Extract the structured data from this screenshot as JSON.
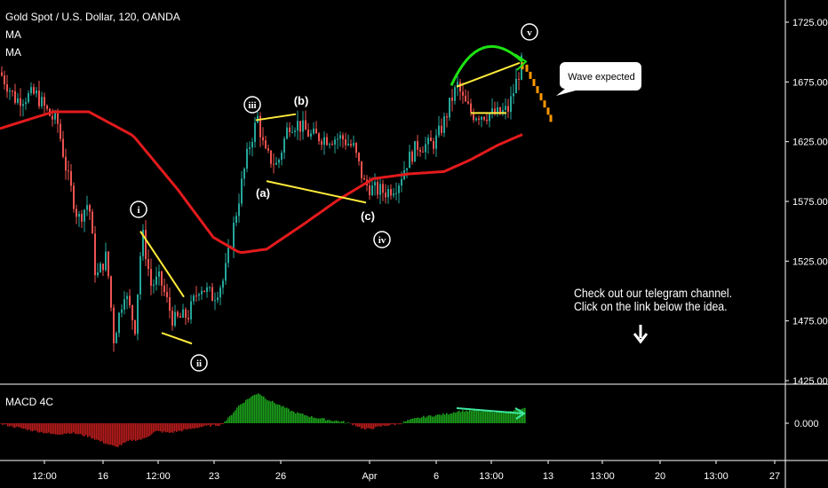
{
  "header": {
    "symbol_line": "Gold Spot / U.S. Dollar, 120, OANDA",
    "indicator_1": "MA",
    "indicator_2": "MA"
  },
  "macd_pane": {
    "label": "MACD 4C"
  },
  "annotations": {
    "note_line_1": "Check out our telegram channel.",
    "note_line_2": "Click on the link below the idea.",
    "callout": "Wave expected",
    "down_arrow": "down-arrow-icon"
  },
  "colors": {
    "up_candle": "#26a69a",
    "down_candle": "#ef5350",
    "ma": "#e31a1c",
    "trendline": "#ffeb3b",
    "arc": "#1de212",
    "projection": "#ff9800",
    "macd_up": "#1b9e1b",
    "macd_down": "#b71c1c",
    "divergence": "#3ee8a0",
    "background": "#000000"
  },
  "chart_data": {
    "type": "candlestick",
    "price_axis": {
      "ticks": [
        "1725.000",
        "1675.000",
        "1625.000",
        "1575.000",
        "1525.000",
        "1475.000",
        "1425.000"
      ],
      "range": [
        1425,
        1725
      ]
    },
    "macd_axis": {
      "ticks": [
        "0.000"
      ]
    },
    "time_axis": {
      "ticks": [
        "12:00",
        "16",
        "12:00",
        "23",
        "26",
        "Apr",
        "6",
        "13:00",
        "13",
        "13:00",
        "20",
        "13:00",
        "27"
      ]
    },
    "wave_labels": [
      "i",
      "ii",
      "iii",
      "(a)",
      "(b)",
      "(c)",
      "iv",
      "v"
    ],
    "waypoints": [
      [
        0,
        1683
      ],
      [
        18,
        1660
      ],
      [
        40,
        1665
      ],
      [
        55,
        1648
      ],
      [
        65,
        1640
      ],
      [
        75,
        1600
      ],
      [
        88,
        1560
      ],
      [
        100,
        1575
      ],
      [
        108,
        1510
      ],
      [
        120,
        1530
      ],
      [
        128,
        1460
      ],
      [
        140,
        1500
      ],
      [
        152,
        1470
      ],
      [
        160,
        1550
      ],
      [
        170,
        1505
      ],
      [
        180,
        1510
      ],
      [
        195,
        1475
      ],
      [
        212,
        1480
      ],
      [
        225,
        1505
      ],
      [
        240,
        1495
      ],
      [
        252,
        1510
      ],
      [
        262,
        1550
      ],
      [
        272,
        1590
      ],
      [
        280,
        1620
      ],
      [
        290,
        1645
      ],
      [
        298,
        1615
      ],
      [
        312,
        1605
      ],
      [
        325,
        1640
      ],
      [
        335,
        1640
      ],
      [
        350,
        1630
      ],
      [
        368,
        1628
      ],
      [
        385,
        1628
      ],
      [
        398,
        1620
      ],
      [
        410,
        1590
      ],
      [
        420,
        1585
      ],
      [
        435,
        1583
      ],
      [
        448,
        1590
      ],
      [
        458,
        1608
      ],
      [
        470,
        1622
      ],
      [
        482,
        1622
      ],
      [
        490,
        1625
      ],
      [
        500,
        1642
      ],
      [
        508,
        1660
      ],
      [
        515,
        1672
      ],
      [
        522,
        1658
      ],
      [
        532,
        1648
      ],
      [
        548,
        1648
      ],
      [
        562,
        1648
      ],
      [
        572,
        1652
      ],
      [
        580,
        1672
      ],
      [
        588,
        1693
      ]
    ],
    "ma_points": [
      [
        0,
        1636
      ],
      [
        60,
        1650
      ],
      [
        100,
        1650
      ],
      [
        150,
        1630
      ],
      [
        200,
        1585
      ],
      [
        240,
        1545
      ],
      [
        270,
        1532
      ],
      [
        300,
        1535
      ],
      [
        340,
        1555
      ],
      [
        380,
        1576
      ],
      [
        420,
        1594
      ],
      [
        460,
        1598
      ],
      [
        500,
        1600
      ],
      [
        530,
        1610
      ],
      [
        560,
        1622
      ],
      [
        588,
        1631
      ]
    ],
    "projection": [
      [
        588,
        1690
      ],
      [
        593,
        1688
      ],
      [
        597,
        1682
      ],
      [
        601,
        1676
      ],
      [
        605,
        1670
      ],
      [
        609,
        1664
      ],
      [
        613,
        1658
      ],
      [
        617,
        1652
      ],
      [
        620,
        1646
      ]
    ],
    "macd_histogram": [
      [
        0,
        -1
      ],
      [
        30,
        -8
      ],
      [
        60,
        -14
      ],
      [
        80,
        -12
      ],
      [
        100,
        -17
      ],
      [
        115,
        -24
      ],
      [
        130,
        -30
      ],
      [
        145,
        -22
      ],
      [
        160,
        -20
      ],
      [
        175,
        -10
      ],
      [
        190,
        -12
      ],
      [
        210,
        -8
      ],
      [
        228,
        -4
      ],
      [
        248,
        -2
      ],
      [
        256,
        6
      ],
      [
        268,
        22
      ],
      [
        280,
        32
      ],
      [
        290,
        38
      ],
      [
        300,
        30
      ],
      [
        315,
        22
      ],
      [
        330,
        14
      ],
      [
        350,
        8
      ],
      [
        370,
        4
      ],
      [
        385,
        2
      ],
      [
        398,
        -2
      ],
      [
        410,
        -8
      ],
      [
        420,
        -6
      ],
      [
        432,
        -3
      ],
      [
        448,
        -1
      ],
      [
        460,
        4
      ],
      [
        476,
        8
      ],
      [
        490,
        10
      ],
      [
        504,
        12
      ],
      [
        514,
        15
      ],
      [
        530,
        16
      ],
      [
        550,
        15
      ],
      [
        570,
        14
      ],
      [
        580,
        16
      ],
      [
        590,
        18
      ]
    ]
  }
}
